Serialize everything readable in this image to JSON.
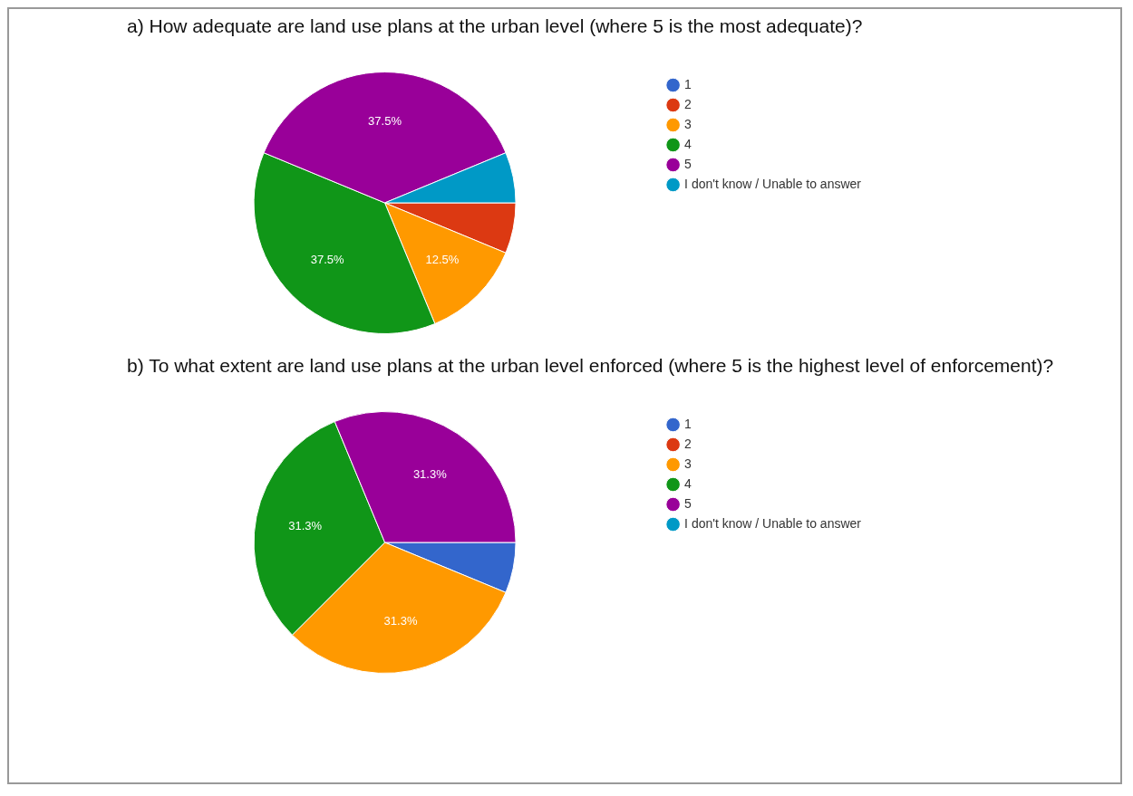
{
  "chart_data": [
    {
      "type": "pie",
      "title": "a) How adequate are land use plans at the urban level (where 5 is the most adequate)?",
      "categories": [
        "1",
        "2",
        "3",
        "4",
        "5",
        "I don't know / Unable to answer"
      ],
      "values": [
        0,
        6.25,
        12.5,
        37.5,
        37.5,
        6.25
      ],
      "value_labels": [
        null,
        null,
        "12.5%",
        "37.5%",
        "37.5%",
        null
      ],
      "colors": [
        "#3366cc",
        "#dc3912",
        "#ff9900",
        "#109618",
        "#990099",
        "#0099c6"
      ],
      "legend": "right"
    },
    {
      "type": "pie",
      "title": "b) To what extent are land use plans at the urban level enforced (where 5 is the highest level of enforcement)?",
      "categories": [
        "1",
        "2",
        "3",
        "4",
        "5",
        "I don't know / Unable to answer"
      ],
      "values": [
        6.25,
        0,
        31.25,
        31.25,
        31.25,
        0
      ],
      "value_labels": [
        null,
        null,
        "31.3%",
        "31.3%",
        "31.3%",
        null
      ],
      "colors": [
        "#3366cc",
        "#dc3912",
        "#ff9900",
        "#109618",
        "#990099",
        "#0099c6"
      ],
      "legend": "right"
    }
  ]
}
